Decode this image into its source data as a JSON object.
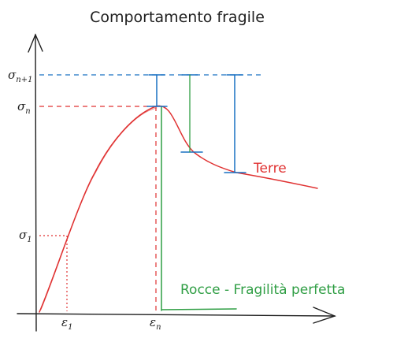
{
  "title": "Comportamento fragile",
  "y_labels": {
    "sigma_n1": {
      "base": "σ",
      "sub": "n+1"
    },
    "sigma_n": {
      "base": "σ",
      "sub": "n"
    },
    "sigma_1": {
      "base": "σ",
      "sub": "1"
    }
  },
  "x_labels": {
    "eps_1": {
      "base": "ε",
      "sub": "1"
    },
    "eps_n": {
      "base": "ε",
      "sub": "n"
    }
  },
  "annotations": {
    "terre": "Terre",
    "rocce": "Rocce - Fragilità perfetta"
  },
  "colors": {
    "axis": "#1e1e1e",
    "red": "#e03131",
    "blue": "#1971c2",
    "green": "#2f9e44"
  }
}
